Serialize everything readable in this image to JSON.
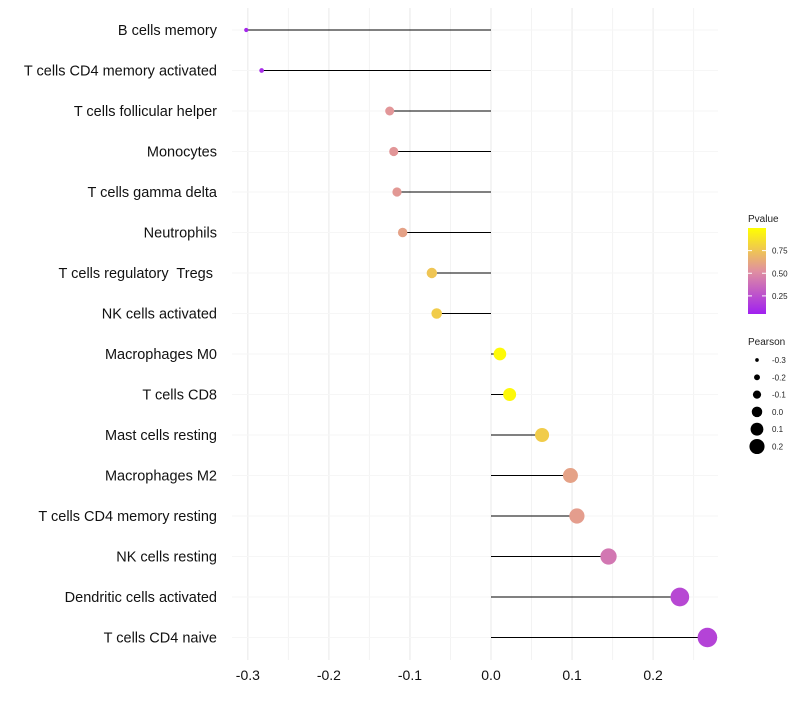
{
  "chart_data": {
    "type": "lollipop",
    "title": "",
    "xlabel": "",
    "ylabel": "",
    "xlim": [
      -0.33,
      0.28
    ],
    "x_ticks": [
      -0.3,
      -0.2,
      -0.1,
      0.0,
      0.1,
      0.2
    ],
    "x_tick_labels": [
      "-0.3",
      "-0.2",
      "-0.1",
      "0.0",
      "0.1",
      "0.2"
    ],
    "categories": [
      "B cells memory",
      "T cells CD4 memory activated",
      "T cells follicular helper",
      "Monocytes",
      "T cells gamma delta",
      "Neutrophils",
      "T cells regulatory  Tregs ",
      "NK cells activated",
      "Macrophages M0",
      "T cells CD8",
      "Mast cells resting",
      "Macrophages M2",
      "T cells CD4 memory resting",
      "NK cells resting",
      "Dendritic cells activated",
      "T cells CD4 naive"
    ],
    "values": [
      -0.302,
      -0.283,
      -0.125,
      -0.12,
      -0.116,
      -0.109,
      -0.073,
      -0.067,
      0.011,
      0.023,
      0.063,
      0.098,
      0.106,
      0.145,
      0.233,
      0.267
    ],
    "pvalues": [
      0.08,
      0.1,
      0.55,
      0.55,
      0.56,
      0.6,
      0.75,
      0.78,
      0.98,
      0.97,
      0.78,
      0.6,
      0.58,
      0.42,
      0.22,
      0.2
    ],
    "baseline": 0.0,
    "legend": {
      "position": "right",
      "color": {
        "title": "Pvalue",
        "ticks": [
          0.75,
          0.5,
          0.25
        ],
        "tick_labels": [
          "0.75",
          "0.50",
          "0.25"
        ],
        "range": [
          0.05,
          1.0
        ],
        "colors": [
          "#a020f0",
          "#e090a0",
          "#ffff00"
        ]
      },
      "size": {
        "title": "Pearson",
        "values": [
          -0.3,
          -0.2,
          -0.1,
          0.0,
          0.1,
          0.2
        ],
        "labels": [
          "-0.3",
          "-0.2",
          "-0.1",
          "0.0",
          "0.1",
          "0.2"
        ]
      }
    }
  }
}
